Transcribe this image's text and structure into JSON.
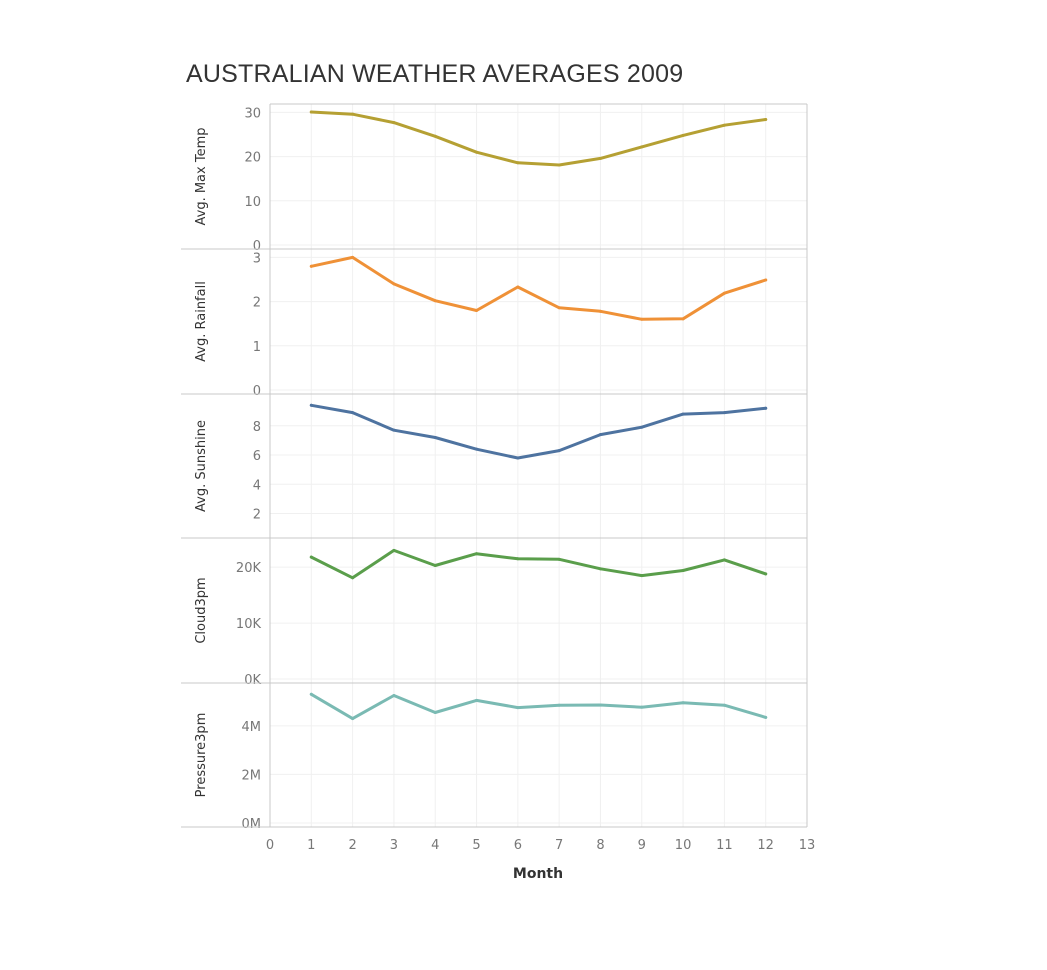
{
  "chart_data": {
    "type": "line",
    "title": "AUSTRALIAN WEATHER AVERAGES 2009",
    "xlabel": "Month",
    "x": [
      1,
      2,
      3,
      4,
      5,
      6,
      7,
      8,
      9,
      10,
      11,
      12
    ],
    "xlim": [
      0,
      13
    ],
    "x_ticks": [
      "0",
      "1",
      "2",
      "3",
      "4",
      "5",
      "6",
      "7",
      "8",
      "9",
      "10",
      "11",
      "12",
      "13"
    ],
    "grid": true,
    "series": [
      {
        "name": "Avg. Max Temp",
        "ylabel": "Avg. Max Temp",
        "color": "#b5a033",
        "ylim": [
          0,
          31
        ],
        "y_ticks": [
          0,
          10,
          20,
          30
        ],
        "y_tick_labels": [
          "0",
          "10",
          "20",
          "30"
        ],
        "values": [
          30.1,
          29.6,
          27.7,
          24.6,
          21.0,
          18.6,
          18.1,
          19.6,
          22.2,
          24.8,
          27.1,
          28.4
        ]
      },
      {
        "name": "Avg. Rainfall",
        "ylabel": "Avg. Rainfall",
        "color": "#ef9137",
        "ylim": [
          0,
          3.1
        ],
        "y_ticks": [
          0,
          1,
          2,
          3
        ],
        "y_tick_labels": [
          "0",
          "1",
          "2",
          "3"
        ],
        "values": [
          2.8,
          3.0,
          2.4,
          2.02,
          1.8,
          2.33,
          1.86,
          1.78,
          1.6,
          1.61,
          2.19,
          2.49
        ]
      },
      {
        "name": "Avg. Sunshine",
        "ylabel": "Avg. Sunshine",
        "color": "#4e73a0",
        "ylim": [
          0.6,
          9.9
        ],
        "y_ticks": [
          2,
          4,
          6,
          8
        ],
        "y_tick_labels": [
          "2",
          "4",
          "6",
          "8"
        ],
        "values": [
          9.4,
          8.9,
          7.7,
          7.2,
          6.4,
          5.8,
          6.3,
          7.4,
          7.9,
          8.8,
          8.9,
          9.2
        ]
      },
      {
        "name": "Cloud3pm",
        "ylabel": "Cloud3pm",
        "color": "#5a9e4b",
        "ylim": [
          0,
          24500
        ],
        "y_ticks": [
          0,
          10000,
          20000
        ],
        "y_tick_labels": [
          "0K",
          "10K",
          "20K"
        ],
        "values": [
          21800,
          18100,
          23000,
          20300,
          22400,
          21500,
          21400,
          19700,
          18500,
          19400,
          21300,
          18800
        ]
      },
      {
        "name": "Pressure3pm",
        "ylabel": "Pressure3pm",
        "color": "#7abab3",
        "ylim": [
          0,
          5.6
        ],
        "y_ticks": [
          0,
          2,
          4
        ],
        "y_tick_labels": [
          "0M",
          "2M",
          "4M"
        ],
        "values": [
          5.3,
          4.3,
          5.25,
          4.55,
          5.05,
          4.75,
          4.85,
          4.86,
          4.77,
          4.95,
          4.85,
          4.35
        ]
      }
    ]
  }
}
